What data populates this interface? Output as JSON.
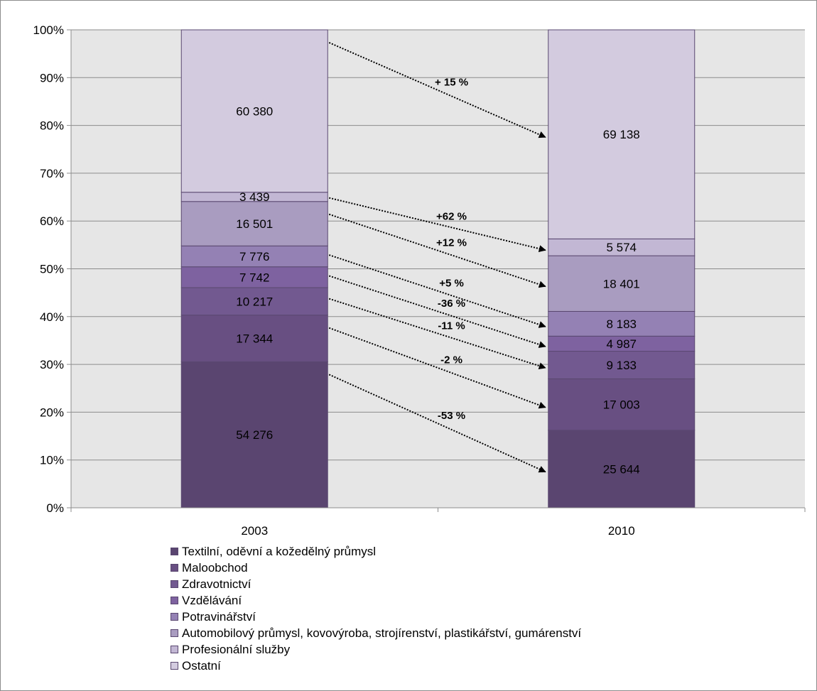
{
  "chart_data": {
    "type": "bar",
    "stacked": "percent",
    "categories": [
      "2003",
      "2010"
    ],
    "y_ticks": [
      "0%",
      "10%",
      "20%",
      "30%",
      "40%",
      "50%",
      "60%",
      "70%",
      "80%",
      "90%",
      "100%"
    ],
    "ylim": [
      0,
      100
    ],
    "grid": true,
    "legend_position": "bottom",
    "series": [
      {
        "name": "Textilní, oděvní a kožedělný průmysl",
        "color": "#5a4570",
        "values": [
          54276,
          25644
        ],
        "labels": [
          "54 276",
          "25 644"
        ],
        "label_color": "#ffffff"
      },
      {
        "name": "Maloobchod",
        "color": "#684f82",
        "values": [
          17344,
          17003
        ],
        "labels": [
          "17 344",
          "17 003"
        ],
        "label_color": "#000000"
      },
      {
        "name": "Zdravotnictví",
        "color": "#725990",
        "values": [
          10217,
          9133
        ],
        "labels": [
          "10 217",
          "9 133"
        ],
        "label_color": "#000000"
      },
      {
        "name": "Vzdělávání",
        "color": "#7e62a0",
        "values": [
          7742,
          4987
        ],
        "labels": [
          "7 742",
          "4 987"
        ],
        "label_color": "#000000"
      },
      {
        "name": "Potravinářství",
        "color": "#9481b4",
        "values": [
          7776,
          8183
        ],
        "labels": [
          "7 776",
          "8 183"
        ],
        "label_color": "#000000"
      },
      {
        "name": "Automobilový průmysl, kovovýroba, strojírenství, plastikářství, gumárenství",
        "color": "#a99cc0",
        "values": [
          16501,
          18401
        ],
        "labels": [
          "16 501",
          "18 401"
        ],
        "label_color": "#000000"
      },
      {
        "name": "Profesionální služby",
        "color": "#c2b7d4",
        "values": [
          3439,
          5574
        ],
        "labels": [
          "3 439",
          "5 574"
        ],
        "label_color": "#000000"
      },
      {
        "name": "Ostatní",
        "color": "#d3cbdf",
        "values": [
          60380,
          69138
        ],
        "labels": [
          "60 380",
          "69 138"
        ],
        "label_color": "#000000"
      }
    ],
    "annotations": [
      {
        "series": 7,
        "text": "+ 15 %"
      },
      {
        "series": 6,
        "text": "+62 %"
      },
      {
        "series": 5,
        "text": "+12 %"
      },
      {
        "series": 4,
        "text": "+5 %"
      },
      {
        "series": 3,
        "text": "-36 %"
      },
      {
        "series": 2,
        "text": "-11 %"
      },
      {
        "series": 1,
        "text": "-2 %"
      },
      {
        "series": 0,
        "text": "-53 %"
      }
    ]
  }
}
